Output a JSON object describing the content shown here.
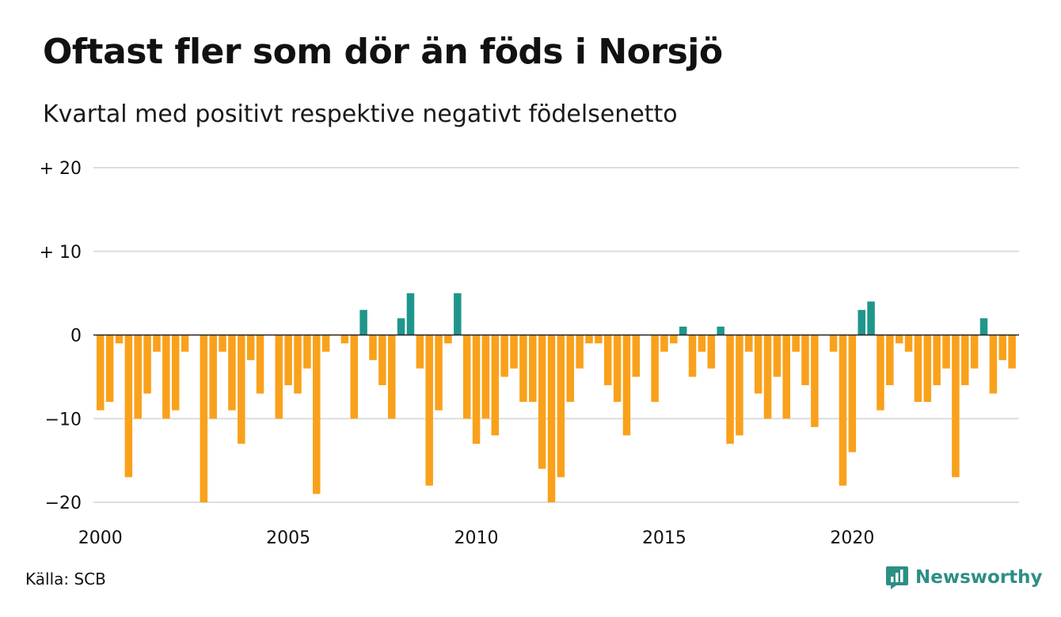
{
  "title": "Oftast fler som dör än föds i Norsjö",
  "subtitle": "Kvartal med positivt respektive negativt födelsenetto",
  "source": "Källa: SCB",
  "brand": "Newsworthy",
  "colors": {
    "positive": "#1f968b",
    "negative": "#f9a11b",
    "grid": "#dddddd",
    "zero": "#222222",
    "brand": "#2d8f83"
  },
  "chart_data": {
    "type": "bar",
    "x_unit": "quarter",
    "start": "2000-Q1",
    "ylim": [
      -20,
      20
    ],
    "yticks": [
      {
        "value": 20,
        "label": "+ 20"
      },
      {
        "value": 10,
        "label": "+ 10"
      },
      {
        "value": 0,
        "label": "0"
      },
      {
        "value": -10,
        "label": "−10"
      },
      {
        "value": -20,
        "label": "−20"
      }
    ],
    "xticks": [
      {
        "year": 2000,
        "label": "2000"
      },
      {
        "year": 2005,
        "label": "2005"
      },
      {
        "year": 2010,
        "label": "2010"
      },
      {
        "year": 2015,
        "label": "2015"
      },
      {
        "year": 2020,
        "label": "2020"
      }
    ],
    "grid": true,
    "values": [
      -9,
      -8,
      -1,
      -17,
      -10,
      -7,
      -2,
      -10,
      -9,
      -2,
      0,
      -20,
      -10,
      -2,
      -9,
      -13,
      -3,
      -7,
      0,
      -10,
      -6,
      -7,
      -4,
      -19,
      -2,
      0,
      -1,
      -10,
      3,
      -3,
      -6,
      -10,
      2,
      5,
      -4,
      -18,
      -9,
      -1,
      5,
      -10,
      -13,
      -10,
      -12,
      -5,
      -4,
      -8,
      -8,
      -16,
      -20,
      -17,
      -8,
      -4,
      -1,
      -1,
      -6,
      -8,
      -12,
      -5,
      0,
      -8,
      -2,
      -1,
      1,
      -5,
      -2,
      -4,
      1,
      -13,
      -12,
      -2,
      -7,
      -10,
      -5,
      -10,
      -2,
      -6,
      -11,
      0,
      -2,
      -18,
      -14,
      3,
      4,
      -9,
      -6,
      -1,
      -2,
      -8,
      -8,
      -6,
      -4,
      -17,
      -6,
      -4,
      2,
      -7,
      -3,
      -4
    ]
  }
}
